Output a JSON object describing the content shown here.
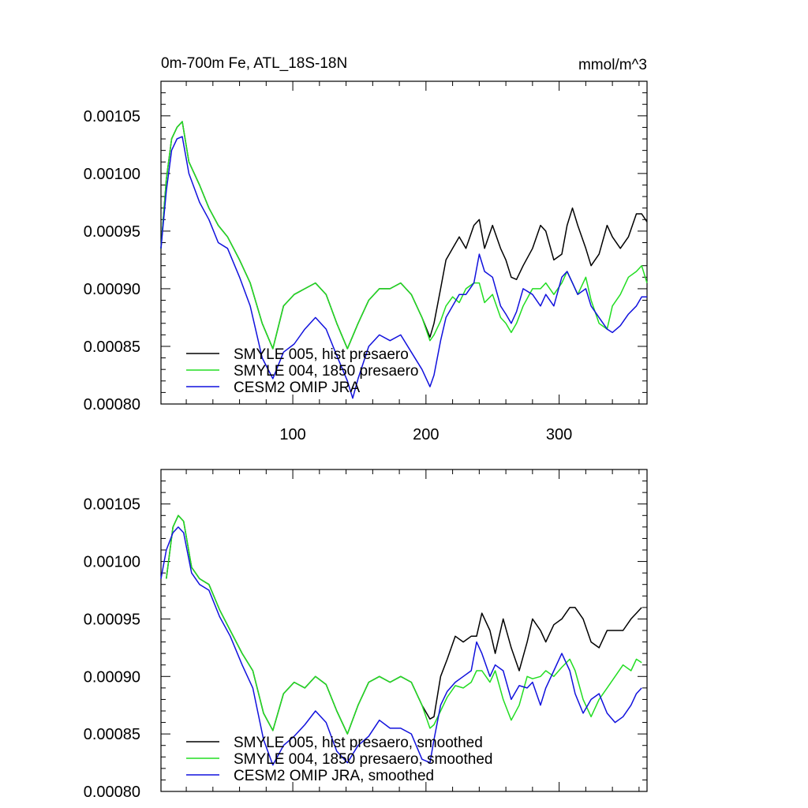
{
  "figure": {
    "left_title": "0m-700m Fe, ATL_18S-18N",
    "right_title": "mmol/m^3"
  },
  "colors": {
    "black": "#000000",
    "green": "#22dd22",
    "blue": "#1111dd"
  },
  "chart_data": [
    {
      "type": "line",
      "title": "0m-700m Fe, ATL_18S-18N",
      "units": "mmol/m^3",
      "xlim": [
        1,
        366
      ],
      "ylim": [
        0.0008,
        0.00108
      ],
      "x_ticks": [
        100,
        200,
        300
      ],
      "x_tick_labels": [
        "100",
        "200",
        "300"
      ],
      "y_ticks": [
        0.0008,
        0.00085,
        0.0009,
        0.00095,
        0.001,
        0.00105
      ],
      "y_tick_labels": [
        "0.00080",
        "0.00085",
        "0.00090",
        "0.00095",
        "0.00100",
        "0.00105"
      ],
      "legend_position": "bottom-left",
      "series": [
        {
          "name": "SMYLE 005, hist presaero",
          "color": "#000000",
          "x": [
            1,
            5,
            9,
            13,
            17,
            22,
            30,
            37,
            44,
            51,
            60,
            68,
            77,
            85,
            93,
            101,
            109,
            117,
            125,
            133,
            141,
            149,
            157,
            165,
            173,
            181,
            189,
            197,
            203,
            206,
            211,
            215,
            220,
            225,
            230,
            236,
            240,
            244,
            250,
            256,
            260,
            264,
            268,
            273,
            280,
            286,
            290,
            296,
            302,
            306,
            310,
            314,
            320,
            324,
            330,
            336,
            340,
            346,
            352,
            358,
            362,
            366
          ],
          "y": [
            0.000935,
            0.000995,
            0.00103,
            0.00104,
            0.001045,
            0.00101,
            0.00099,
            0.00097,
            0.000955,
            0.000945,
            0.000925,
            0.000905,
            0.00087,
            0.000848,
            0.000885,
            0.000895,
            0.0009,
            0.000905,
            0.000895,
            0.00087,
            0.000848,
            0.00087,
            0.00089,
            0.0009,
            0.0009,
            0.000905,
            0.000895,
            0.000875,
            0.000858,
            0.00087,
            0.0009,
            0.000925,
            0.000935,
            0.000945,
            0.000935,
            0.000955,
            0.00096,
            0.000935,
            0.000955,
            0.000935,
            0.000925,
            0.00091,
            0.000908,
            0.00092,
            0.000935,
            0.000955,
            0.00095,
            0.000925,
            0.00093,
            0.000955,
            0.00097,
            0.000955,
            0.000935,
            0.00092,
            0.00093,
            0.000955,
            0.000945,
            0.000935,
            0.000945,
            0.000965,
            0.000965,
            0.000958
          ]
        },
        {
          "name": "SMYLE 004, 1850 presaero",
          "color": "#22dd22",
          "x": [
            1,
            5,
            9,
            13,
            17,
            22,
            30,
            37,
            44,
            51,
            60,
            68,
            77,
            85,
            93,
            101,
            109,
            117,
            125,
            133,
            141,
            149,
            157,
            165,
            173,
            181,
            189,
            197,
            203,
            206,
            211,
            215,
            220,
            225,
            230,
            236,
            240,
            244,
            250,
            256,
            260,
            264,
            268,
            273,
            280,
            286,
            290,
            296,
            302,
            306,
            310,
            314,
            320,
            324,
            330,
            336,
            340,
            346,
            352,
            358,
            362,
            366
          ],
          "y": [
            0.000935,
            0.000995,
            0.00103,
            0.00104,
            0.001045,
            0.00101,
            0.00099,
            0.00097,
            0.000955,
            0.000945,
            0.000925,
            0.000905,
            0.00087,
            0.000848,
            0.000885,
            0.000895,
            0.0009,
            0.000905,
            0.000895,
            0.00087,
            0.000848,
            0.00087,
            0.00089,
            0.0009,
            0.0009,
            0.000905,
            0.000895,
            0.000875,
            0.000855,
            0.00086,
            0.000872,
            0.000885,
            0.000893,
            0.000888,
            0.0009,
            0.000905,
            0.000905,
            0.000888,
            0.000895,
            0.000875,
            0.00087,
            0.000862,
            0.00087,
            0.000885,
            0.0009,
            0.0009,
            0.000905,
            0.000895,
            0.000905,
            0.000915,
            0.000905,
            0.000895,
            0.00091,
            0.00089,
            0.00087,
            0.000865,
            0.000885,
            0.000895,
            0.00091,
            0.000915,
            0.00092,
            0.000905
          ]
        },
        {
          "name": "CESM2 OMIP JRA",
          "color": "#1111dd",
          "x": [
            1,
            5,
            9,
            13,
            17,
            22,
            30,
            37,
            44,
            51,
            60,
            68,
            77,
            85,
            93,
            101,
            109,
            117,
            125,
            133,
            141,
            145,
            149,
            157,
            165,
            173,
            181,
            189,
            197,
            203,
            206,
            211,
            215,
            220,
            225,
            230,
            236,
            240,
            244,
            250,
            256,
            260,
            264,
            268,
            273,
            280,
            286,
            290,
            296,
            302,
            306,
            310,
            314,
            320,
            324,
            330,
            336,
            340,
            346,
            352,
            358,
            362,
            366
          ],
          "y": [
            0.000935,
            0.000985,
            0.00102,
            0.00103,
            0.001032,
            0.001,
            0.000975,
            0.00096,
            0.00094,
            0.000935,
            0.00091,
            0.000885,
            0.00084,
            0.000822,
            0.000845,
            0.000852,
            0.000865,
            0.000875,
            0.000865,
            0.000842,
            0.00082,
            0.000805,
            0.000822,
            0.00085,
            0.00086,
            0.000855,
            0.00086,
            0.000845,
            0.00083,
            0.000815,
            0.000825,
            0.000855,
            0.000875,
            0.000885,
            0.000895,
            0.000895,
            0.000905,
            0.00093,
            0.000915,
            0.00091,
            0.000885,
            0.000878,
            0.00087,
            0.00088,
            0.0009,
            0.000895,
            0.000885,
            0.000895,
            0.000885,
            0.00091,
            0.000915,
            0.000905,
            0.000895,
            0.0009,
            0.000885,
            0.000875,
            0.000865,
            0.000862,
            0.000868,
            0.000878,
            0.000885,
            0.000893,
            0.000893
          ]
        }
      ]
    },
    {
      "type": "line",
      "title": "",
      "xlim": [
        1,
        366
      ],
      "ylim": [
        0.0008,
        0.00108
      ],
      "x_ticks": [
        100,
        200,
        300
      ],
      "x_tick_labels": [
        "",
        "",
        ""
      ],
      "y_ticks": [
        0.0008,
        0.00085,
        0.0009,
        0.00095,
        0.001,
        0.00105
      ],
      "y_tick_labels": [
        "0.00080",
        "0.00085",
        "0.00090",
        "0.00095",
        "0.00100",
        "0.00105"
      ],
      "legend_position": "bottom-left",
      "series": [
        {
          "name": "SMYLE 005, hist presaero, smoothed",
          "color": "#000000",
          "x": [
            5,
            10,
            14,
            18,
            24,
            30,
            37,
            45,
            53,
            62,
            70,
            78,
            85,
            93,
            101,
            109,
            117,
            125,
            133,
            141,
            149,
            157,
            165,
            173,
            181,
            189,
            197,
            203,
            206,
            211,
            216,
            222,
            228,
            234,
            238,
            242,
            248,
            252,
            258,
            264,
            270,
            276,
            280,
            286,
            290,
            296,
            302,
            308,
            312,
            318,
            324,
            330,
            336,
            342,
            348,
            354,
            358,
            362
          ],
          "y": [
            0.000985,
            0.00103,
            0.00104,
            0.001035,
            0.000995,
            0.000985,
            0.00098,
            0.000958,
            0.00094,
            0.00092,
            0.000905,
            0.000868,
            0.000853,
            0.000885,
            0.000895,
            0.00089,
            0.0009,
            0.000893,
            0.00087,
            0.00085,
            0.000875,
            0.000895,
            0.0009,
            0.000895,
            0.0009,
            0.000895,
            0.000875,
            0.000863,
            0.000865,
            0.0009,
            0.000915,
            0.000935,
            0.00093,
            0.000935,
            0.000935,
            0.000955,
            0.00094,
            0.00092,
            0.00095,
            0.000925,
            0.000905,
            0.00093,
            0.00095,
            0.00094,
            0.00093,
            0.000945,
            0.00095,
            0.00096,
            0.00096,
            0.00095,
            0.00093,
            0.000925,
            0.00094,
            0.00094,
            0.00094,
            0.00095,
            0.000955,
            0.00096
          ]
        },
        {
          "name": "SMYLE 004, 1850 presaero, smoothed",
          "color": "#22dd22",
          "x": [
            5,
            10,
            14,
            18,
            24,
            30,
            37,
            45,
            53,
            62,
            70,
            78,
            85,
            93,
            101,
            109,
            117,
            125,
            133,
            141,
            149,
            157,
            165,
            173,
            181,
            189,
            197,
            203,
            206,
            211,
            216,
            222,
            228,
            234,
            238,
            242,
            248,
            252,
            258,
            264,
            270,
            276,
            280,
            286,
            290,
            296,
            302,
            308,
            312,
            318,
            324,
            330,
            336,
            342,
            348,
            354,
            358,
            362
          ],
          "y": [
            0.000985,
            0.00103,
            0.00104,
            0.001035,
            0.000995,
            0.000985,
            0.00098,
            0.000958,
            0.00094,
            0.00092,
            0.000905,
            0.000868,
            0.000853,
            0.000885,
            0.000895,
            0.00089,
            0.0009,
            0.000893,
            0.00087,
            0.00085,
            0.000875,
            0.000895,
            0.0009,
            0.000895,
            0.0009,
            0.000895,
            0.000875,
            0.000855,
            0.000858,
            0.00087,
            0.000882,
            0.000892,
            0.00089,
            0.000895,
            0.000905,
            0.000905,
            0.000895,
            0.000905,
            0.00088,
            0.000862,
            0.000875,
            0.0009,
            0.000898,
            0.0009,
            0.000905,
            0.0009,
            0.000908,
            0.000915,
            0.000905,
            0.00088,
            0.000865,
            0.00088,
            0.00089,
            0.0009,
            0.00091,
            0.000905,
            0.000915,
            0.000912
          ]
        },
        {
          "name": "CESM2 OMIP JRA, smoothed",
          "color": "#1111dd",
          "x": [
            1,
            5,
            10,
            14,
            18,
            24,
            30,
            37,
            45,
            53,
            62,
            70,
            78,
            85,
            93,
            101,
            109,
            117,
            125,
            133,
            141,
            149,
            157,
            165,
            173,
            181,
            189,
            197,
            203,
            206,
            211,
            216,
            222,
            228,
            234,
            238,
            242,
            248,
            252,
            258,
            264,
            270,
            276,
            280,
            286,
            290,
            296,
            302,
            308,
            312,
            318,
            324,
            330,
            336,
            342,
            348,
            354,
            358,
            362
          ],
          "y": [
            0.000985,
            0.00101,
            0.001025,
            0.00103,
            0.001025,
            0.00099,
            0.00098,
            0.000975,
            0.000952,
            0.000935,
            0.00091,
            0.00089,
            0.000845,
            0.000823,
            0.00084,
            0.000848,
            0.000858,
            0.00087,
            0.00086,
            0.000835,
            0.000825,
            0.00084,
            0.000848,
            0.000862,
            0.000855,
            0.000855,
            0.00085,
            0.000828,
            0.000825,
            0.000845,
            0.000875,
            0.000887,
            0.000895,
            0.0009,
            0.000905,
            0.00093,
            0.00092,
            0.0009,
            0.00091,
            0.000905,
            0.00088,
            0.000892,
            0.00089,
            0.000895,
            0.000875,
            0.00089,
            0.000905,
            0.00092,
            0.000905,
            0.000885,
            0.000868,
            0.00088,
            0.000885,
            0.000868,
            0.00086,
            0.000865,
            0.000875,
            0.000885,
            0.00089
          ]
        }
      ]
    }
  ]
}
